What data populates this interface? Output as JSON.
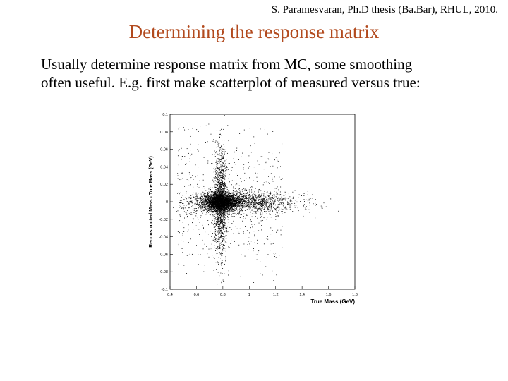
{
  "slide": {
    "credit": "S. Paramesvaran, Ph.D thesis (Ba.Bar), RHUL, 2010.",
    "title": "Determining the response matrix",
    "body_lines": [
      "Usually determine response matrix from MC, some smoothing",
      "often useful.   E.g. first make scatterplot of measured versus true:"
    ],
    "colors": {
      "title": "#b24a1e",
      "text": "#000000"
    }
  },
  "chart_data": {
    "type": "scatter",
    "title": "",
    "xlabel": "True Mass (GeV)",
    "ylabel": "Reconstructed Mass - True Mass (GeV)",
    "xlim": [
      0.4,
      1.8
    ],
    "ylim": [
      -0.1,
      0.1
    ],
    "xticks": [
      "0.4",
      "0.6",
      "0.8",
      "1",
      "1.2",
      "1.4",
      "1.6",
      "1.8"
    ],
    "yticks": [
      "-0.1",
      "-0.08",
      "-0.06",
      "-0.04",
      "-0.02",
      "0",
      "0.02",
      "0.04",
      "0.06",
      "0.08",
      "0.1"
    ],
    "grid": false,
    "legend": "none",
    "marker_color": "#000000",
    "description_of_distribution": {
      "core_center": [
        0.78,
        0.0
      ],
      "core_x_sigma": 0.06,
      "core_y_sigma": 0.005,
      "horizontal_tail_x_range": [
        0.4,
        1.55
      ],
      "vertical_spread_x_center": 0.78
    }
  }
}
